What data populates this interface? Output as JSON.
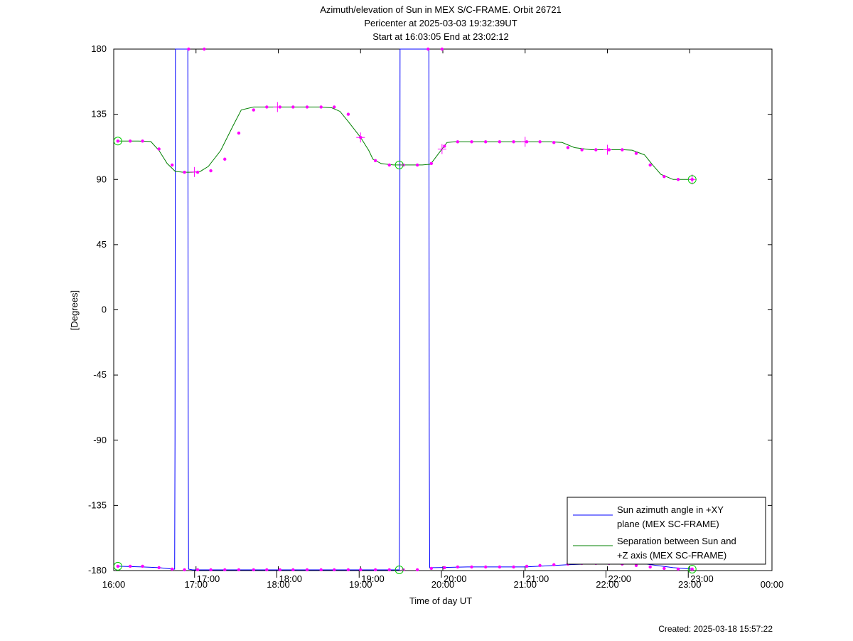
{
  "chart_data": {
    "type": "line",
    "title": "Azimuth/elevation of Sun in MEX S/C-FRAME.  Orbit 26721",
    "subtitle_lines": [
      "Pericenter at 2025-03-03 19:32:39UT",
      "Start at 16:03:05 End at 23:02:12"
    ],
    "xlabel": "Time of day UT",
    "ylabel": "[Degrees]",
    "xlim_hours": [
      16,
      24
    ],
    "ylim": [
      -180,
      180
    ],
    "x_tick_labels": [
      "16:00",
      "17:00",
      "18:00",
      "19:00",
      "20:00",
      "21:00",
      "22:00",
      "23:00",
      "00:00"
    ],
    "secondary_tick_labels": [
      "17:00",
      "18:00",
      "19:00",
      "20:00",
      "21:00",
      "22:00",
      "23:00"
    ],
    "y_ticks": [
      -180,
      -135,
      -90,
      -45,
      0,
      45,
      90,
      135,
      180
    ],
    "legend_position": "bottom-right",
    "series": [
      {
        "name": "Sun azimuth angle in +XY plane (MEX SC-FRAME)",
        "legend_lines": [
          "Sun azimuth angle in +XY",
          "plane (MEX SC-FRAME)"
        ],
        "color": "#0000ff",
        "x": [
          16.05,
          16.35,
          16.55,
          16.72,
          16.74,
          16.745,
          16.75,
          16.8,
          16.88,
          16.9,
          16.905,
          16.91,
          16.96,
          17.5,
          18.0,
          18.5,
          19.0,
          19.35,
          19.45,
          19.47,
          19.475,
          19.48,
          19.6,
          19.8,
          19.83,
          19.835,
          19.84,
          19.9,
          20.3,
          21.0,
          21.5,
          22.0,
          22.4,
          22.8,
          23.03
        ],
        "values": [
          -177,
          -177.5,
          -178,
          -179,
          -179,
          -90,
          180,
          180,
          180,
          180,
          -90,
          -179,
          -179.5,
          -179.5,
          -179.5,
          -179.5,
          -179.5,
          -179.5,
          -179.5,
          -179.5,
          -90,
          180,
          180,
          180,
          180,
          -90,
          -178,
          -178,
          -177.5,
          -177.5,
          -176,
          -175,
          -175,
          -178,
          -179
        ]
      },
      {
        "name": "Separation between Sun and +Z axis (MEX SC-FRAME)",
        "legend_lines": [
          "Separation between Sun and",
          "+Z axis (MEX SC-FRAME)"
        ],
        "color": "#008000",
        "x": [
          16.05,
          16.3,
          16.45,
          16.55,
          16.65,
          16.75,
          16.85,
          16.95,
          17.05,
          17.15,
          17.3,
          17.45,
          17.55,
          17.7,
          18.0,
          18.3,
          18.5,
          18.65,
          18.75,
          18.85,
          19.0,
          19.1,
          19.15,
          19.25,
          19.4,
          19.6,
          19.75,
          19.85,
          19.95,
          20.05,
          20.15,
          20.3,
          20.8,
          21.3,
          21.45,
          21.6,
          21.8,
          22.0,
          22.2,
          22.3,
          22.45,
          22.55,
          22.65,
          22.8,
          23.03
        ],
        "values": [
          116.5,
          116.5,
          116.2,
          110,
          101,
          95.5,
          95,
          95,
          95.5,
          99,
          110,
          127,
          138,
          140,
          140,
          140,
          140,
          139.5,
          137,
          130,
          119,
          110,
          104,
          101,
          100,
          100,
          100,
          100.5,
          108,
          115.5,
          116,
          116,
          116,
          116,
          115.5,
          112,
          110.5,
          110.5,
          110.5,
          110.2,
          107,
          100,
          93.5,
          90,
          90
        ]
      }
    ],
    "marker_color": "#ff00ff",
    "endpoint_marker_color": "#00cc00",
    "marker_points": {
      "x": [
        16.05,
        16.2,
        16.35,
        16.55,
        16.71,
        16.86,
        17.02,
        17.18,
        17.35,
        17.52,
        17.7,
        17.86,
        18.02,
        18.18,
        18.35,
        18.52,
        18.68,
        18.85,
        19.0,
        19.18,
        19.35,
        19.52,
        19.69,
        19.86,
        20.02,
        20.18,
        20.35,
        20.52,
        20.69,
        20.86,
        21.02,
        21.18,
        21.35,
        21.52,
        21.69,
        21.86,
        22.02,
        22.18,
        22.35,
        22.52,
        22.69,
        22.86,
        23.03
      ],
      "green_values": [
        116.5,
        116.5,
        116.5,
        111,
        100,
        95,
        95,
        96,
        104,
        122,
        138,
        140,
        140,
        140,
        140,
        140,
        140,
        135,
        119,
        103,
        100,
        100,
        100,
        101,
        113,
        116,
        116,
        116,
        116,
        116,
        116,
        116,
        115.5,
        112,
        110.5,
        110.5,
        110.5,
        110.5,
        108,
        100,
        92,
        90,
        90
      ],
      "blue_values": [
        -177,
        -177,
        -177,
        -178,
        -179,
        -179.5,
        -179.5,
        -179.5,
        -179.5,
        -179.5,
        -179.5,
        -179.5,
        -179.5,
        -179.5,
        -179.5,
        -179.5,
        -179.5,
        -179.5,
        -179.5,
        -179.5,
        -179.5,
        -179.5,
        -179.5,
        -178.5,
        -178,
        -177.5,
        -177.5,
        -177.5,
        -177.5,
        -177.5,
        -177,
        -176.5,
        -176,
        -175.5,
        -175,
        -175,
        -175,
        -175.5,
        -176.5,
        -177.5,
        -178.5,
        -179,
        -179
      ],
      "top_x": [
        16.91,
        17.1,
        19.82,
        19.99
      ],
      "top_values": [
        180,
        180,
        180,
        180
      ]
    },
    "big_markers_x": [
      16.98,
      17.99,
      19.0,
      19.99,
      21.0,
      22.0,
      23.03
    ]
  },
  "footer": {
    "created": "Created: 2025-03-18 15:57:22"
  }
}
